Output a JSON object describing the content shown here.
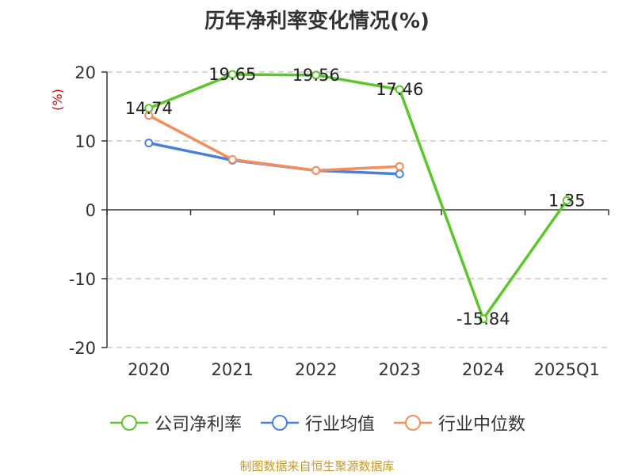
{
  "chart_data": {
    "type": "line",
    "title": "历年净利率变化情况(%)",
    "ylabel": "(%)",
    "categories": [
      "2020",
      "2021",
      "2022",
      "2023",
      "2024",
      "2025Q1"
    ],
    "ylim": [
      -20,
      20
    ],
    "yticks": [
      20,
      10,
      0,
      -10,
      -20
    ],
    "grid": true,
    "legend_position": "bottom",
    "series": [
      {
        "name": "公司净利率",
        "color": "#5cc72a",
        "values": [
          14.74,
          19.65,
          19.56,
          17.46,
          -15.84,
          1.35
        ],
        "labels": [
          "14.74",
          "19.65",
          "19.56",
          "17.46",
          "-15.84",
          "1.35"
        ],
        "show_labels": true
      },
      {
        "name": "行业均值",
        "color": "#4a7fdc",
        "values": [
          9.7,
          7.2,
          5.7,
          5.2,
          null,
          null
        ],
        "show_labels": false
      },
      {
        "name": "行业中位数",
        "color": "#f28e5c",
        "values": [
          13.7,
          7.3,
          5.7,
          6.3,
          null,
          null
        ],
        "show_labels": false
      }
    ]
  },
  "source_note": "制图数据来自恒生聚源数据库"
}
